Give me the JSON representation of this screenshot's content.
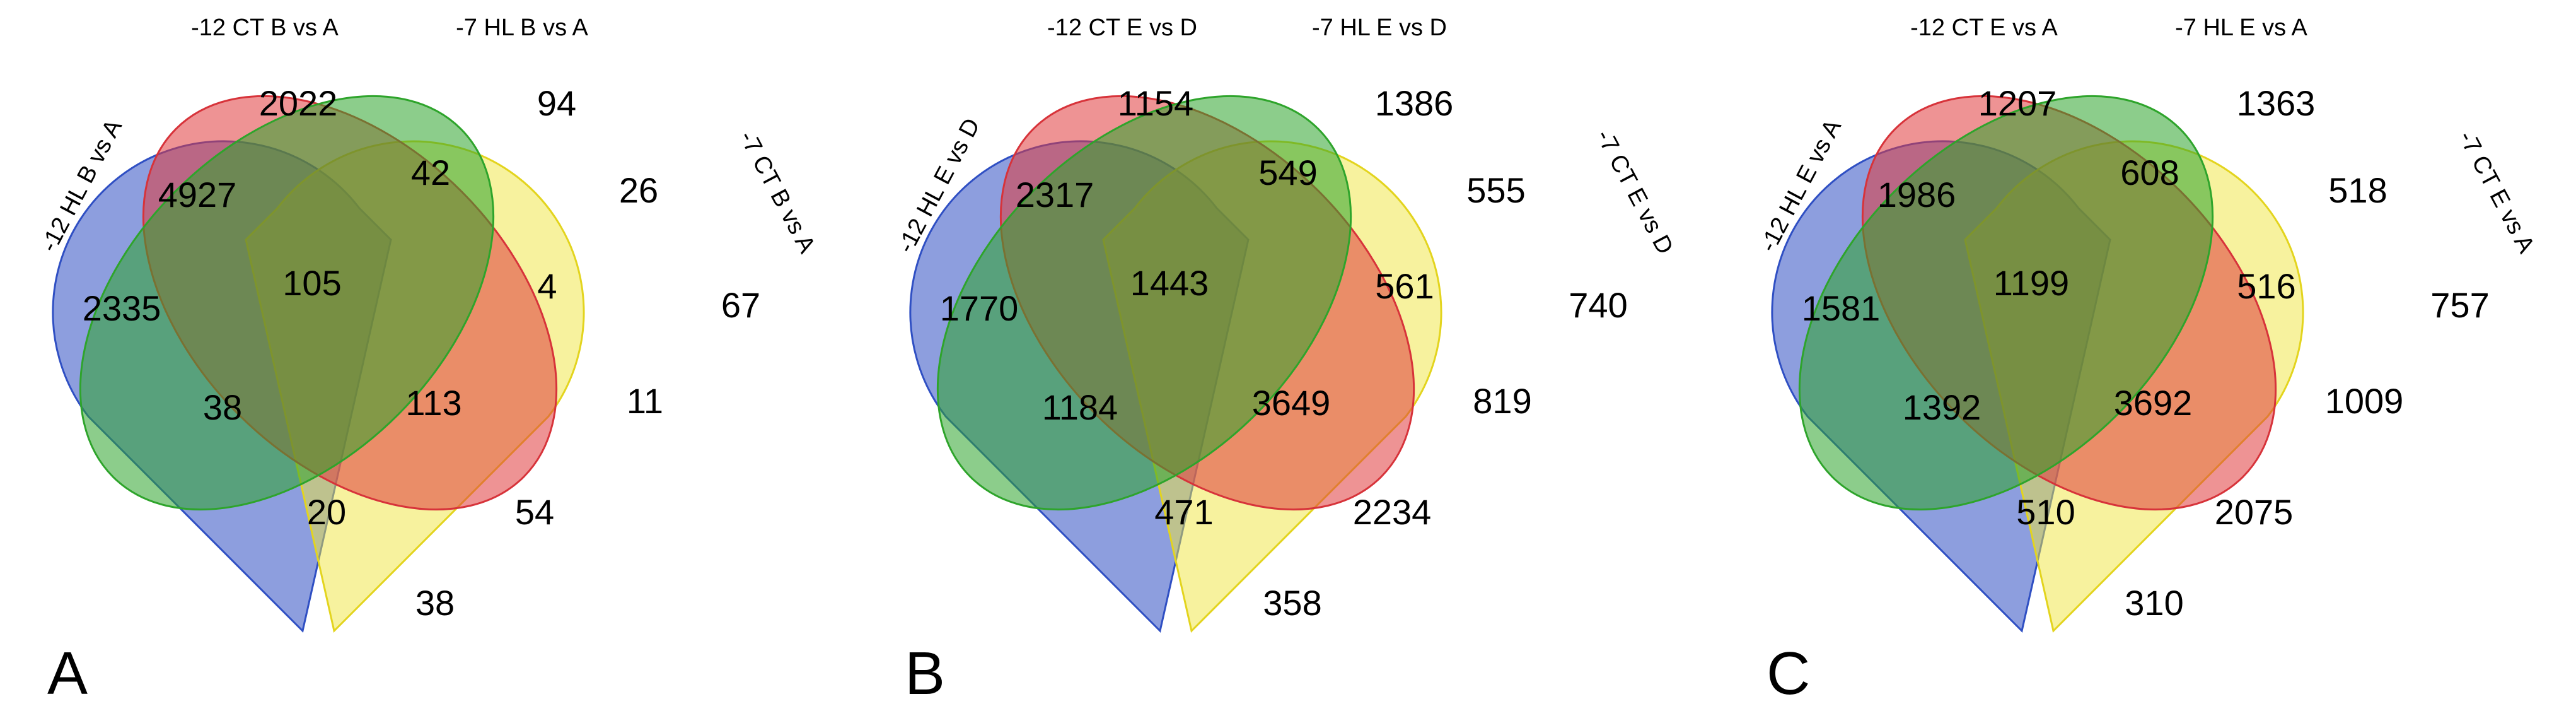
{
  "colors": {
    "set1": "#2f4fc3",
    "set2": "#e03a3c",
    "set3": "#2ea42b",
    "set4": "#f0e63e"
  },
  "panels": [
    {
      "letter": "A",
      "sets": [
        "-12 HL B vs A",
        "-12 CT B vs A",
        "-7 HL B vs A",
        "-7 CT B vs A"
      ],
      "counts": {
        "only1": "2335",
        "only2": "2022",
        "only3": "94",
        "only4": "67",
        "s12": "4927",
        "s23": "42",
        "s34": "26",
        "s13": "38",
        "s14": "38",
        "s24": "11",
        "s123": "105",
        "s234": "4",
        "s134": "20",
        "s124": "54",
        "s1234": "113"
      }
    },
    {
      "letter": "B",
      "sets": [
        "-12 HL E vs D",
        "-12 CT E vs D",
        "-7 HL E vs D",
        "-7 CT E vs D"
      ],
      "counts": {
        "only1": "1770",
        "only2": "1154",
        "only3": "1386",
        "only4": "740",
        "s12": "2317",
        "s23": "549",
        "s34": "555",
        "s13": "1184",
        "s14": "358",
        "s24": "819",
        "s123": "1443",
        "s234": "561",
        "s134": "471",
        "s124": "2234",
        "s1234": "3649"
      }
    },
    {
      "letter": "C",
      "sets": [
        "-12 HL E vs A",
        "-12 CT E vs A",
        "-7 HL E vs A",
        "-7 CT E vs A"
      ],
      "counts": {
        "only1": "1581",
        "only2": "1207",
        "only3": "1363",
        "only4": "757",
        "s12": "1986",
        "s23": "608",
        "s34": "518",
        "s13": "1392",
        "s14": "310",
        "s24": "1009",
        "s123": "1199",
        "s234": "516",
        "s134": "510",
        "s124": "2075",
        "s1234": "3692"
      }
    }
  ]
}
